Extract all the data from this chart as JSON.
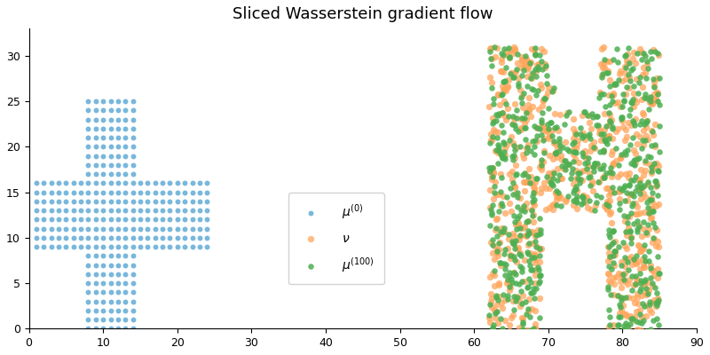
{
  "title": "Sliced Wasserstein gradient flow",
  "title_fontsize": 13,
  "legend_label_mu0": "$\\mu^{(0)}$",
  "legend_label_nu": "$\\nu$",
  "legend_label_mu100": "$\\mu^{(100)}$",
  "color_mu0": "#6ab0d8",
  "color_nu": "#FFA55A",
  "color_mu100": "#4CAF50",
  "ms_mu0": 18,
  "ms_nu": 28,
  "ms_mu100": 22,
  "alpha_mu0": 0.9,
  "alpha_nu": 0.75,
  "alpha_mu100": 0.85,
  "xlim": [
    0,
    90
  ],
  "ylim": [
    0,
    33
  ],
  "figsize": [
    8.0,
    4.0
  ],
  "dpi": 100,
  "n_tooth_particles": 700,
  "cross_vert_x": [
    8,
    9,
    10,
    11,
    12,
    13,
    14
  ],
  "cross_vert_y_min": 0,
  "cross_vert_y_max": 25,
  "cross_horiz_x_min": 1,
  "cross_horiz_x_max": 24,
  "cross_horiz_y": [
    9,
    10,
    11,
    12,
    13,
    14,
    15,
    16
  ]
}
